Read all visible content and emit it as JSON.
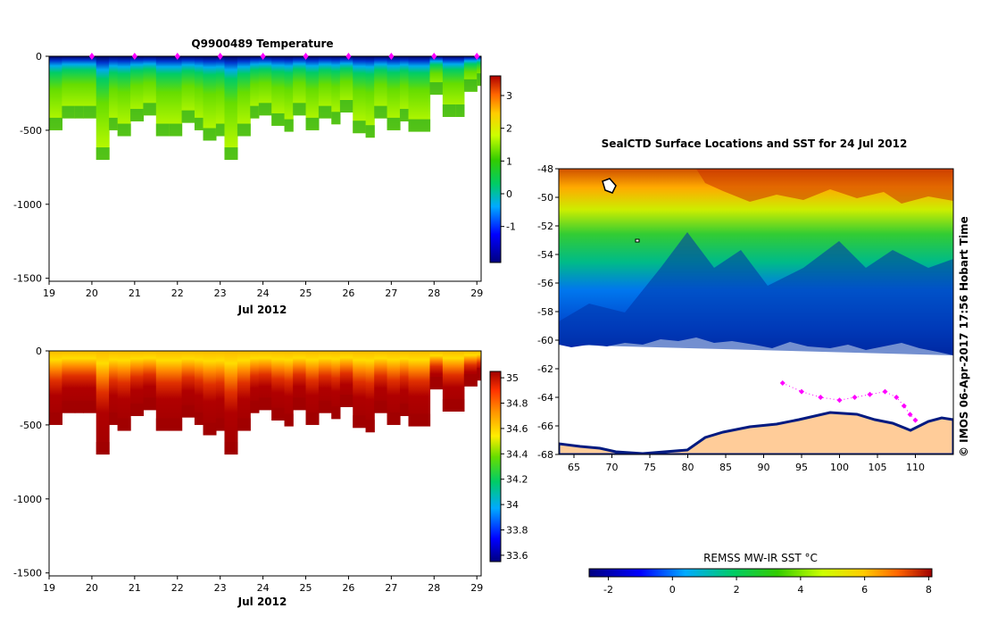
{
  "chart_data": [
    {
      "type": "heatmap",
      "title": "Q9900489  Temperature",
      "xlabel": "Jul 2012",
      "ylabel": "",
      "x_ticks": [
        "19",
        "20",
        "21",
        "22",
        "23",
        "24",
        "25",
        "26",
        "27",
        "28",
        "29"
      ],
      "xlim": [
        19,
        29.1
      ],
      "y_ticks": [
        "0",
        "-500",
        "-1000",
        "-1500"
      ],
      "ylim": [
        -1520,
        0
      ],
      "colorbar": {
        "ticks": [
          "-1",
          "0",
          "1",
          "2",
          "3"
        ],
        "range": [
          -2.1,
          3.6
        ]
      },
      "profiles": [
        {
          "day": 19.0,
          "depth": -500
        },
        {
          "day": 19.3,
          "depth": -420
        },
        {
          "day": 19.6,
          "depth": -420
        },
        {
          "day": 19.8,
          "depth": -420
        },
        {
          "day": 20.1,
          "depth": -700
        },
        {
          "day": 20.4,
          "depth": -500
        },
        {
          "day": 20.6,
          "depth": -540
        },
        {
          "day": 20.9,
          "depth": -440
        },
        {
          "day": 21.2,
          "depth": -400
        },
        {
          "day": 21.5,
          "depth": -540
        },
        {
          "day": 21.8,
          "depth": -540
        },
        {
          "day": 22.1,
          "depth": -450
        },
        {
          "day": 22.4,
          "depth": -500
        },
        {
          "day": 22.6,
          "depth": -570
        },
        {
          "day": 22.9,
          "depth": -540
        },
        {
          "day": 23.1,
          "depth": -700
        },
        {
          "day": 23.4,
          "depth": -540
        },
        {
          "day": 23.7,
          "depth": -420
        },
        {
          "day": 23.9,
          "depth": -400
        },
        {
          "day": 24.2,
          "depth": -470
        },
        {
          "day": 24.5,
          "depth": -510
        },
        {
          "day": 24.7,
          "depth": -400
        },
        {
          "day": 25.0,
          "depth": -500
        },
        {
          "day": 25.3,
          "depth": -420
        },
        {
          "day": 25.6,
          "depth": -460
        },
        {
          "day": 25.8,
          "depth": -380
        },
        {
          "day": 26.1,
          "depth": -520
        },
        {
          "day": 26.4,
          "depth": -550
        },
        {
          "day": 26.6,
          "depth": -420
        },
        {
          "day": 26.9,
          "depth": -500
        },
        {
          "day": 27.2,
          "depth": -440
        },
        {
          "day": 27.4,
          "depth": -510
        },
        {
          "day": 27.9,
          "depth": -260
        },
        {
          "day": 28.2,
          "depth": -410
        },
        {
          "day": 28.5,
          "depth": -410
        },
        {
          "day": 28.7,
          "depth": -240
        },
        {
          "day": 29.0,
          "depth": -200
        }
      ],
      "marker_days": [
        20,
        21,
        22,
        23,
        24,
        25,
        26,
        27,
        28,
        29
      ]
    },
    {
      "type": "heatmap",
      "title": "",
      "xlabel": "Jul 2012",
      "ylabel": "",
      "x_ticks": [
        "19",
        "20",
        "21",
        "22",
        "23",
        "24",
        "25",
        "26",
        "27",
        "28",
        "29"
      ],
      "xlim": [
        19,
        29.1
      ],
      "y_ticks": [
        "0",
        "-500",
        "-1000",
        "-1500"
      ],
      "ylim": [
        -1520,
        0
      ],
      "colorbar": {
        "ticks": [
          "33.6",
          "33.8",
          "34",
          "34.2",
          "34.4",
          "34.6",
          "34.8",
          "35"
        ],
        "range": [
          33.55,
          35.05
        ]
      }
    },
    {
      "type": "heatmap",
      "title": "SealCTD Surface Locations and SST for 24 Jul 2012",
      "xlabel": "",
      "ylabel": "",
      "x_ticks": [
        "65",
        "70",
        "75",
        "80",
        "85",
        "90",
        "95",
        "100",
        "105",
        "110"
      ],
      "xlim": [
        63,
        115
      ],
      "y_ticks": [
        "-48",
        "-50",
        "-52",
        "-54",
        "-56",
        "-58",
        "-60",
        "-62",
        "-64",
        "-66",
        "-68"
      ],
      "ylim": [
        -68,
        -48
      ],
      "colorbar": {
        "label": "REMSS MW-IR SST °C",
        "ticks": [
          "-2",
          "0",
          "2",
          "4",
          "6",
          "8"
        ],
        "range": [
          -2.6,
          8.1
        ]
      },
      "track": [
        {
          "lon": 92.5,
          "lat": -63.0
        },
        {
          "lon": 95.0,
          "lat": -63.6
        },
        {
          "lon": 97.5,
          "lat": -64.0
        },
        {
          "lon": 100.0,
          "lat": -64.2
        },
        {
          "lon": 102.0,
          "lat": -64.0
        },
        {
          "lon": 104.0,
          "lat": -63.8
        },
        {
          "lon": 106.0,
          "lat": -63.6
        },
        {
          "lon": 107.5,
          "lat": -64.0
        },
        {
          "lon": 108.5,
          "lat": -64.6
        },
        {
          "lon": 109.3,
          "lat": -65.2
        },
        {
          "lon": 110.0,
          "lat": -65.6
        }
      ]
    }
  ],
  "footer": {
    "credit": "© IMOS 06-Apr-2017 17:56 Hobart Time"
  }
}
